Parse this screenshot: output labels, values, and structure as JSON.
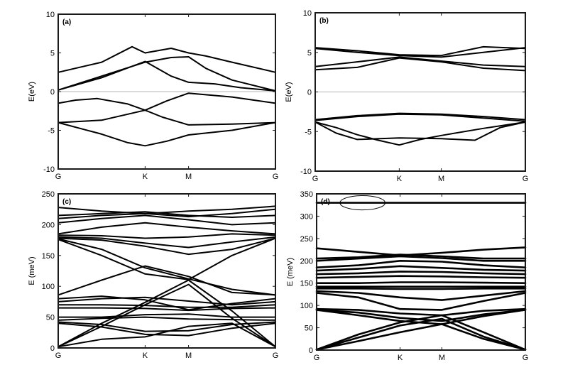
{
  "chart_data": [
    {
      "type": "line",
      "panel_label": "(a)",
      "ylabel": "E(eV)",
      "xlabel": "",
      "x_ticks": [
        "G",
        "K",
        "M",
        "G"
      ],
      "x_tick_pos": [
        0,
        1,
        1.5,
        2.5
      ],
      "ylim": [
        -10,
        10
      ],
      "yticks": [
        -10,
        -5,
        0,
        5,
        10
      ],
      "zero_line": true,
      "grid": false,
      "series": [
        {
          "x": [
            0,
            0.5,
            0.85,
            1.0,
            1.3,
            1.5,
            1.7,
            2.0,
            2.5
          ],
          "y": [
            2.5,
            3.8,
            5.8,
            5.0,
            5.6,
            5.0,
            4.6,
            3.8,
            2.5
          ]
        },
        {
          "x": [
            0,
            0.5,
            1.0,
            1.3,
            1.5,
            1.7,
            2.0,
            2.5
          ],
          "y": [
            0.2,
            2.0,
            3.8,
            4.4,
            4.5,
            3.0,
            1.5,
            0.1
          ]
        },
        {
          "x": [
            0,
            0.5,
            1.0,
            1.3,
            1.5,
            1.8,
            2.1,
            2.5
          ],
          "y": [
            0.2,
            1.8,
            3.9,
            2.0,
            1.2,
            1.0,
            0.5,
            0.1
          ]
        },
        {
          "x": [
            0,
            0.2,
            0.45,
            0.8,
            1.0,
            1.2,
            1.5,
            2.0,
            2.5
          ],
          "y": [
            -1.5,
            -1.1,
            -0.9,
            -1.6,
            -2.4,
            -3.3,
            -4.3,
            -4.2,
            -4.0
          ]
        },
        {
          "x": [
            0,
            0.5,
            1.0,
            1.25,
            1.5,
            2.0,
            2.5
          ],
          "y": [
            -4.0,
            -3.7,
            -2.4,
            -1.2,
            -0.2,
            -0.7,
            -1.5
          ]
        },
        {
          "x": [
            0,
            0.5,
            0.8,
            1.0,
            1.25,
            1.5,
            2.0,
            2.5
          ],
          "y": [
            -4.0,
            -5.5,
            -6.6,
            -7.0,
            -6.4,
            -5.6,
            -5.0,
            -4.0
          ]
        }
      ]
    },
    {
      "type": "line",
      "panel_label": "(b)",
      "ylabel": "E(eV)",
      "xlabel": "",
      "x_ticks": [
        "G",
        "K",
        "M",
        "G"
      ],
      "x_tick_pos": [
        0,
        1,
        1.5,
        2.5
      ],
      "ylim": [
        -10,
        10
      ],
      "yticks": [
        -10,
        -5,
        0,
        5,
        10
      ],
      "zero_line": true,
      "grid": false,
      "series": [
        {
          "x": [
            0,
            0.5,
            1.0,
            1.5,
            2.0,
            2.5
          ],
          "y": [
            5.6,
            5.2,
            4.7,
            4.6,
            5.7,
            5.5
          ]
        },
        {
          "x": [
            0,
            0.5,
            1.0,
            1.5,
            2.0,
            2.5
          ],
          "y": [
            5.5,
            5.0,
            4.6,
            4.4,
            5.0,
            5.6
          ]
        },
        {
          "x": [
            0,
            0.5,
            1.0,
            1.5,
            2.0,
            2.5
          ],
          "y": [
            3.2,
            3.8,
            4.4,
            3.9,
            3.4,
            3.2
          ]
        },
        {
          "x": [
            0,
            0.5,
            1.0,
            1.5,
            2.0,
            2.5
          ],
          "y": [
            2.8,
            3.1,
            4.3,
            3.8,
            3.0,
            2.7
          ]
        },
        {
          "x": [
            0,
            0.5,
            1.0,
            1.5,
            2.0,
            2.5
          ],
          "y": [
            -3.5,
            -3.0,
            -2.7,
            -2.8,
            -3.1,
            -3.5
          ]
        },
        {
          "x": [
            0,
            0.5,
            1.0,
            1.5,
            2.0,
            2.5
          ],
          "y": [
            -3.6,
            -3.1,
            -2.8,
            -2.9,
            -3.3,
            -3.7
          ]
        },
        {
          "x": [
            0,
            0.25,
            0.5,
            0.75,
            1.0,
            1.25,
            1.5,
            2.0,
            2.5
          ],
          "y": [
            -3.8,
            -4.5,
            -5.4,
            -6.1,
            -6.7,
            -6.0,
            -5.5,
            -4.6,
            -3.8
          ]
        },
        {
          "x": [
            0,
            0.25,
            0.5,
            1.0,
            1.5,
            1.9,
            2.2,
            2.5
          ],
          "y": [
            -3.8,
            -5.2,
            -6.0,
            -5.8,
            -5.9,
            -6.1,
            -4.5,
            -3.8
          ]
        }
      ]
    },
    {
      "type": "line",
      "panel_label": "(c)",
      "ylabel": "E (meV)",
      "xlabel": "",
      "x_ticks": [
        "G",
        "K",
        "M",
        "G"
      ],
      "x_tick_pos": [
        0,
        1,
        1.5,
        2.5
      ],
      "ylim": [
        0,
        250
      ],
      "yticks": [
        0,
        50,
        100,
        150,
        200,
        250
      ],
      "zero_line": false,
      "grid": false,
      "series": [
        {
          "x": [
            0,
            0.5,
            1.0,
            1.5,
            2.0,
            2.5
          ],
          "y": [
            228,
            222,
            218,
            222,
            225,
            230
          ]
        },
        {
          "x": [
            0,
            0.5,
            1.0,
            1.5,
            2.0,
            2.5
          ],
          "y": [
            215,
            218,
            221,
            215,
            212,
            215
          ]
        },
        {
          "x": [
            0,
            0.5,
            1.0,
            1.5,
            2.0,
            2.5
          ],
          "y": [
            210,
            215,
            218,
            213,
            218,
            225
          ]
        },
        {
          "x": [
            0,
            0.5,
            1.0,
            1.5,
            2.0,
            2.5
          ],
          "y": [
            203,
            210,
            215,
            208,
            200,
            203
          ]
        },
        {
          "x": [
            0,
            0.5,
            1.0,
            1.5,
            2.0,
            2.5
          ],
          "y": [
            185,
            196,
            203,
            196,
            190,
            185
          ]
        },
        {
          "x": [
            0,
            0.5,
            1.0,
            1.5,
            2.0,
            2.5
          ],
          "y": [
            183,
            182,
            178,
            180,
            185,
            183
          ]
        },
        {
          "x": [
            0,
            0.5,
            1.0,
            1.5,
            2.0,
            2.5
          ],
          "y": [
            180,
            178,
            170,
            163,
            172,
            180
          ]
        },
        {
          "x": [
            0,
            0.5,
            1.0,
            1.5,
            2.0,
            2.5
          ],
          "y": [
            178,
            175,
            165,
            152,
            160,
            178
          ]
        },
        {
          "x": [
            0,
            0.5,
            1.0,
            1.5,
            2.0,
            2.5
          ],
          "y": [
            177,
            160,
            130,
            112,
            95,
            86
          ]
        },
        {
          "x": [
            0,
            0.5,
            1.0,
            1.5,
            2.0,
            2.5
          ],
          "y": [
            176,
            150,
            120,
            111,
            150,
            178
          ]
        },
        {
          "x": [
            0,
            0.5,
            1.0,
            1.5,
            2.0,
            2.5
          ],
          "y": [
            86,
            110,
            133,
            116,
            90,
            86
          ]
        },
        {
          "x": [
            0,
            0.5,
            1.0,
            1.5,
            2.0,
            2.5
          ],
          "y": [
            80,
            84,
            78,
            62,
            72,
            80
          ]
        },
        {
          "x": [
            0,
            0.5,
            1.0,
            1.5,
            2.0,
            2.5
          ],
          "y": [
            75,
            80,
            82,
            76,
            70,
            75
          ]
        },
        {
          "x": [
            0,
            0.5,
            1.0,
            1.5,
            2.0,
            2.5
          ],
          "y": [
            70,
            70,
            69,
            66,
            66,
            70
          ]
        },
        {
          "x": [
            0,
            0.5,
            1.0,
            1.5,
            2.0,
            2.5
          ],
          "y": [
            65,
            65,
            64,
            61,
            64,
            65
          ]
        },
        {
          "x": [
            0,
            0.5,
            1.0,
            1.5,
            2.0,
            2.5
          ],
          "y": [
            50,
            50,
            54,
            55,
            50,
            50
          ]
        },
        {
          "x": [
            0,
            0.5,
            1.0,
            1.5,
            2.0,
            2.5
          ],
          "y": [
            45,
            48,
            50,
            47,
            46,
            45
          ]
        },
        {
          "x": [
            0,
            0.5,
            1.0,
            1.5,
            2.0,
            2.5
          ],
          "y": [
            42,
            38,
            27,
            28,
            38,
            42
          ]
        },
        {
          "x": [
            0,
            0.5,
            1.0,
            1.5,
            2.0,
            2.5
          ],
          "y": [
            40,
            34,
            22,
            20,
            32,
            40
          ]
        },
        {
          "x": [
            0,
            0.5,
            1.0,
            1.5,
            2.0,
            2.5
          ],
          "y": [
            2,
            40,
            74,
            110,
            60,
            2
          ]
        },
        {
          "x": [
            0,
            0.5,
            1.0,
            1.5,
            2.0,
            2.5
          ],
          "y": [
            2,
            35,
            70,
            103,
            48,
            2
          ]
        },
        {
          "x": [
            0,
            0.5,
            1.0,
            1.5,
            2.0,
            2.5
          ],
          "y": [
            2,
            14,
            18,
            35,
            40,
            2
          ]
        }
      ]
    },
    {
      "type": "line",
      "panel_label": "(d)",
      "ylabel": "E (meV)",
      "xlabel": "",
      "x_ticks": [
        "G",
        "K",
        "M",
        "G"
      ],
      "x_tick_pos": [
        0,
        1,
        1.5,
        2.5
      ],
      "ylim": [
        0,
        350
      ],
      "yticks": [
        0,
        50,
        100,
        150,
        200,
        250,
        300,
        350
      ],
      "zero_line": false,
      "grid": false,
      "annotation": {
        "shape": "ellipse",
        "x": 0.55,
        "y": 330,
        "rx_data": 0.27,
        "ry_data": 16
      },
      "series": [
        {
          "x": [
            0,
            2.5
          ],
          "y": [
            330,
            330
          ]
        },
        {
          "x": [
            0,
            0.5,
            1.0,
            1.5,
            2.0,
            2.5
          ],
          "y": [
            228,
            220,
            212,
            218,
            225,
            230
          ]
        },
        {
          "x": [
            0,
            0.5,
            1.0,
            1.5,
            2.0,
            2.5
          ],
          "y": [
            205,
            208,
            214,
            210,
            205,
            205
          ]
        },
        {
          "x": [
            0,
            0.5,
            1.0,
            1.5,
            2.0,
            2.5
          ],
          "y": [
            200,
            205,
            210,
            206,
            200,
            200
          ]
        },
        {
          "x": [
            0,
            0.5,
            1.0,
            1.5,
            2.0,
            2.5
          ],
          "y": [
            185,
            190,
            200,
            198,
            190,
            185
          ]
        },
        {
          "x": [
            0,
            0.5,
            1.0,
            1.5,
            2.0,
            2.5
          ],
          "y": [
            178,
            182,
            188,
            184,
            180,
            178
          ]
        },
        {
          "x": [
            0,
            0.5,
            1.0,
            1.5,
            2.0,
            2.5
          ],
          "y": [
            170,
            172,
            176,
            175,
            172,
            170
          ]
        },
        {
          "x": [
            0,
            0.5,
            1.0,
            1.5,
            2.0,
            2.5
          ],
          "y": [
            162,
            164,
            166,
            165,
            163,
            162
          ]
        },
        {
          "x": [
            0,
            0.5,
            1.0,
            1.5,
            2.0,
            2.5
          ],
          "y": [
            150,
            150,
            152,
            152,
            151,
            150
          ]
        },
        {
          "x": [
            0,
            0.5,
            1.0,
            1.5,
            2.0,
            2.5
          ],
          "y": [
            142,
            142,
            142,
            142,
            142,
            142
          ]
        },
        {
          "x": [
            0,
            0.5,
            1.0,
            1.5,
            2.0,
            2.5
          ],
          "y": [
            138,
            138,
            137,
            137,
            138,
            138
          ]
        },
        {
          "x": [
            0,
            0.5,
            1.0,
            1.5,
            2.0,
            2.5
          ],
          "y": [
            132,
            128,
            118,
            112,
            122,
            132
          ]
        },
        {
          "x": [
            0,
            0.5,
            1.0,
            1.5,
            2.0,
            2.5
          ],
          "y": [
            128,
            118,
            92,
            90,
            110,
            128
          ]
        },
        {
          "x": [
            0,
            0.5,
            1.0,
            1.5,
            2.0,
            2.5
          ],
          "y": [
            92,
            90,
            82,
            78,
            88,
            92
          ]
        },
        {
          "x": [
            0,
            0.5,
            1.0,
            1.5,
            2.0,
            2.5
          ],
          "y": [
            90,
            84,
            72,
            65,
            80,
            90
          ]
        },
        {
          "x": [
            0,
            0.5,
            1.0,
            1.5,
            2.0,
            2.5
          ],
          "y": [
            90,
            78,
            65,
            58,
            76,
            90
          ]
        },
        {
          "x": [
            0,
            0.5,
            1.0,
            1.5,
            2.0,
            2.5
          ],
          "y": [
            1,
            35,
            62,
            78,
            40,
            1
          ]
        },
        {
          "x": [
            0,
            0.5,
            1.0,
            1.5,
            2.0,
            2.5
          ],
          "y": [
            1,
            28,
            55,
            70,
            30,
            1
          ]
        },
        {
          "x": [
            0,
            0.5,
            1.0,
            1.5,
            2.0,
            2.5
          ],
          "y": [
            1,
            20,
            40,
            58,
            25,
            1
          ]
        }
      ]
    }
  ]
}
